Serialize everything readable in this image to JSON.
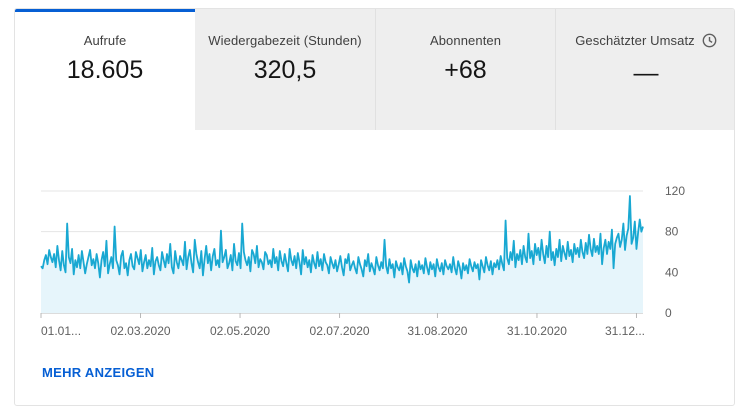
{
  "tabs": [
    {
      "label": "Aufrufe",
      "value": "18.605"
    },
    {
      "label": "Wiedergabezeit (Stunden)",
      "value": "320,5"
    },
    {
      "label": "Abonnenten",
      "value": "+68"
    },
    {
      "label": "Geschätzter Umsatz",
      "value": "—",
      "icon": "clock-icon"
    }
  ],
  "colors": {
    "accent": "#065fd4",
    "line": "#19a8d2",
    "area": "#e6f5fb"
  },
  "more_label": "MEHR ANZEIGEN",
  "chart_data": {
    "type": "area",
    "x_start": "2020-01-01",
    "x_end": "2021-01-04",
    "x_tick_labels": [
      "01.01...",
      "02.03.2020",
      "02.05.2020",
      "02.07.2020",
      "31.08.2020",
      "31.10.2020",
      "31.12..."
    ],
    "y_ticks": [
      0,
      40,
      80,
      120
    ],
    "ylim": [
      0,
      120
    ],
    "series": [
      {
        "values": [
          46,
          44,
          52,
          57,
          48,
          62,
          55,
          50,
          58,
          45,
          66,
          52,
          42,
          61,
          47,
          40,
          88,
          55,
          49,
          63,
          38,
          52,
          45,
          57,
          44,
          61,
          50,
          39,
          48,
          55,
          62,
          47,
          53,
          44,
          58,
          49,
          35,
          52,
          60,
          46,
          71,
          39,
          48,
          55,
          44,
          85,
          52,
          47,
          38,
          56,
          61,
          44,
          49,
          37,
          52,
          58,
          46,
          43,
          60,
          54,
          48,
          62,
          41,
          50,
          57,
          44,
          52,
          46,
          64,
          38,
          51,
          55,
          47,
          42,
          60,
          52,
          45,
          58,
          49,
          68,
          45,
          39,
          61,
          50,
          44,
          56,
          52,
          47,
          70,
          43,
          55,
          62,
          49,
          40,
          72,
          58,
          50,
          44,
          61,
          37,
          53,
          66,
          49,
          58,
          42,
          56,
          63,
          47,
          52,
          45,
          81,
          50,
          55,
          62,
          44,
          49,
          57,
          42,
          68,
          51,
          47,
          59,
          44,
          88,
          60,
          52,
          47,
          55,
          41,
          62,
          58,
          49,
          66,
          45,
          53,
          50,
          43,
          60,
          57,
          48,
          52,
          45,
          63,
          49,
          55,
          42,
          61,
          51,
          46,
          58,
          49,
          41,
          63,
          52,
          47,
          56,
          44,
          59,
          50,
          38,
          62,
          48,
          55,
          45,
          52,
          40,
          57,
          49,
          44,
          60,
          46,
          53,
          42,
          58,
          50,
          47,
          39,
          55,
          49,
          44,
          52,
          41,
          48,
          56,
          45,
          37,
          53,
          49,
          58,
          42,
          47,
          51,
          44,
          39,
          55,
          48,
          43,
          36,
          52,
          46,
          58,
          41,
          49,
          44,
          38,
          55,
          47,
          42,
          50,
          44,
          72,
          46,
          39,
          53,
          44,
          48,
          35,
          51,
          45,
          42,
          49,
          38,
          54,
          46,
          41,
          30,
          52,
          44,
          40,
          48,
          36,
          51,
          43,
          47,
          39,
          54,
          45,
          38,
          50,
          43,
          48,
          36,
          53,
          45,
          41,
          49,
          38,
          52,
          46,
          43,
          48,
          40,
          55,
          44,
          38,
          51,
          45,
          34,
          49,
          42,
          47,
          39,
          53,
          46,
          41,
          50,
          44,
          48,
          33,
          52,
          46,
          40,
          55,
          47,
          42,
          51,
          38,
          49,
          45,
          52,
          43,
          56,
          48,
          42,
          91,
          54,
          48,
          60,
          52,
          71,
          45,
          58,
          52,
          62,
          48,
          66,
          55,
          50,
          78,
          54,
          61,
          48,
          68,
          57,
          64,
          52,
          72,
          58,
          49,
          66,
          55,
          80,
          52,
          60,
          47,
          63,
          55,
          72,
          51,
          66,
          59,
          53,
          70,
          56,
          62,
          50,
          68,
          58,
          64,
          55,
          72,
          60,
          54,
          69,
          58,
          77,
          63,
          56,
          73,
          60,
          66,
          58,
          78,
          48,
          64,
          72,
          58,
          70,
          63,
          82,
          44,
          68,
          74,
          78,
          65,
          72,
          88,
          62,
          76,
          83,
          115,
          68,
          74,
          90,
          63,
          79,
          92,
          80,
          85
        ]
      }
    ]
  }
}
